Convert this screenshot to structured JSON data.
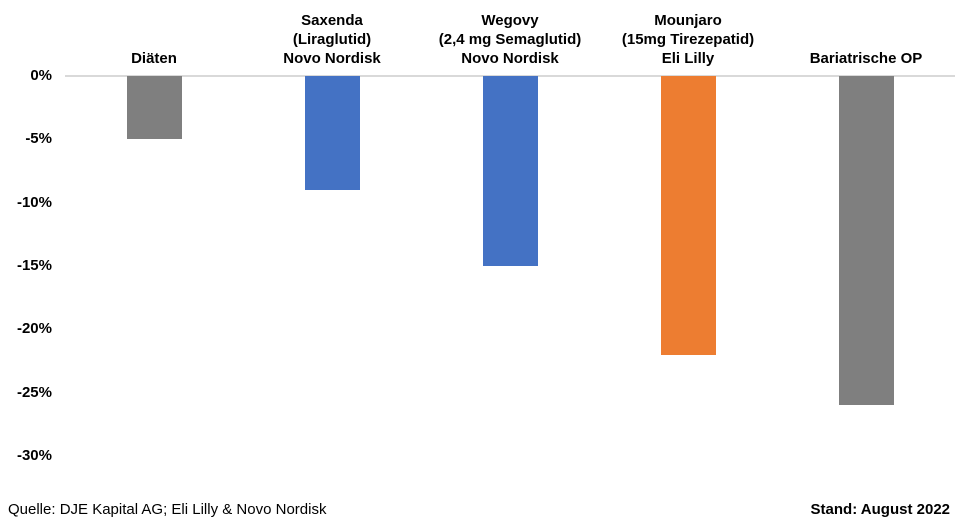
{
  "chart_data": {
    "type": "bar",
    "title": "",
    "categories": [
      "Diäten",
      "Saxenda (Liraglutid) Novo Nordisk",
      "Wegovy (2,4 mg Semaglutid) Novo Nordisk",
      "Mounjaro (15mg Tirezepatid) Eli Lilly",
      "Bariatrische OP"
    ],
    "category_label_lines": [
      [
        "Diäten"
      ],
      [
        "Saxenda",
        "(Liraglutid)",
        "Novo Nordisk"
      ],
      [
        "Wegovy",
        "(2,4 mg Semaglutid)",
        "Novo Nordisk"
      ],
      [
        "Mounjaro",
        "(15mg Tirezepatid)",
        "Eli Lilly"
      ],
      [
        "Bariatrische OP"
      ]
    ],
    "values": [
      -5,
      -9,
      -15,
      -22,
      -26
    ],
    "unit": "%",
    "bar_colors": [
      "#7f7f7f",
      "#4472c4",
      "#4472c4",
      "#ed7d31",
      "#7f7f7f"
    ],
    "y_ticks": [
      "0%",
      "-5%",
      "-10%",
      "-15%",
      "-20%",
      "-25%",
      "-30%"
    ],
    "ylim": [
      -30,
      0
    ],
    "grid": false,
    "legend_position": "none",
    "axis_line_color": "#d9d9d9",
    "xlabel": "",
    "ylabel": ""
  },
  "footer": {
    "source": "Quelle: DJE Kapital AG; Eli Lilly & Novo Nordisk",
    "date": "Stand: August 2022"
  }
}
